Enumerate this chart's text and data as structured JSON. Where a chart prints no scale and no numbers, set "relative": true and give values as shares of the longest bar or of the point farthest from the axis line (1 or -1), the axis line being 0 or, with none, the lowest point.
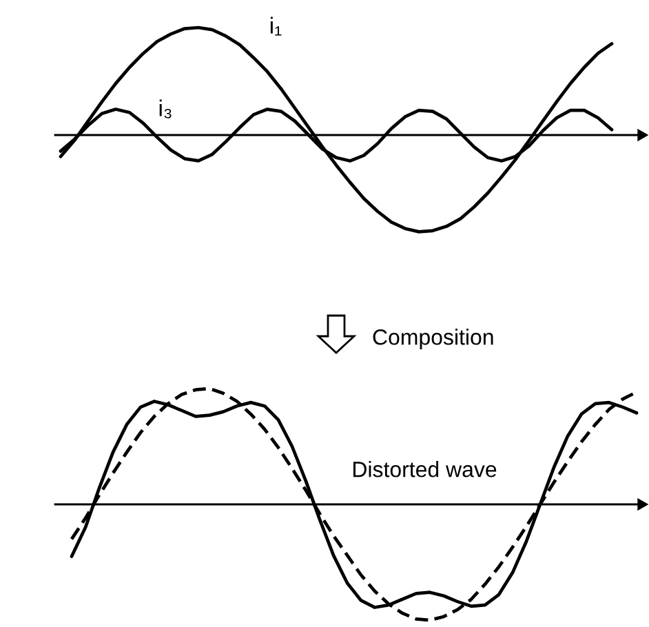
{
  "chart_data": [
    {
      "type": "line",
      "relative": true,
      "categories": [
        null,
        null,
        null,
        null,
        null,
        null,
        null,
        null,
        null,
        null,
        null,
        null,
        null,
        null,
        null,
        null,
        null,
        null,
        null,
        null,
        null,
        null,
        null,
        null,
        null,
        null,
        null,
        null,
        null,
        null,
        null,
        null,
        null,
        null,
        null,
        null,
        null,
        null,
        null,
        null,
        null
      ],
      "series": [
        {
          "name": "i₁",
          "color": "#000000",
          "line_style": "solid",
          "values": [
            -0.2,
            -0.05,
            0.13,
            0.31,
            0.48,
            0.63,
            0.76,
            0.87,
            0.94,
            0.99,
            1.0,
            0.98,
            0.92,
            0.84,
            0.72,
            0.59,
            0.43,
            0.25,
            0.07,
            -0.11,
            -0.28,
            -0.44,
            -0.59,
            -0.71,
            -0.81,
            -0.87,
            -0.9,
            -0.89,
            -0.85,
            -0.78,
            -0.67,
            -0.54,
            -0.39,
            -0.23,
            -0.05,
            0.13,
            0.31,
            0.48,
            0.63,
            0.76,
            0.85
          ]
        },
        {
          "name": "i₃",
          "color": "#000000",
          "line_style": "solid",
          "values": [
            -0.15,
            -0.04,
            0.09,
            0.2,
            0.24,
            0.21,
            0.11,
            -0.02,
            -0.14,
            -0.22,
            -0.24,
            -0.18,
            -0.06,
            0.07,
            0.19,
            0.24,
            0.22,
            0.13,
            0.0,
            -0.13,
            -0.21,
            -0.24,
            -0.19,
            -0.08,
            0.06,
            0.17,
            0.23,
            0.22,
            0.15,
            0.02,
            -0.11,
            -0.21,
            -0.24,
            -0.2,
            -0.1,
            0.04,
            0.16,
            0.23,
            0.23,
            0.16,
            0.05
          ]
        }
      ],
      "annotations": [
        "Composition"
      ]
    },
    {
      "type": "line",
      "relative": true,
      "categories": [
        null,
        null,
        null,
        null,
        null,
        null,
        null,
        null,
        null,
        null,
        null,
        null,
        null,
        null,
        null,
        null,
        null,
        null,
        null,
        null,
        null,
        null,
        null,
        null,
        null,
        null,
        null,
        null,
        null,
        null,
        null,
        null,
        null,
        null,
        null,
        null,
        null,
        null,
        null,
        null,
        null,
        null
      ],
      "series": [
        {
          "color": "#000000",
          "line_style": "dashed",
          "values": [
            -0.3,
            -0.12,
            0.08,
            0.27,
            0.45,
            0.62,
            0.76,
            0.87,
            0.95,
            0.99,
            1.0,
            0.96,
            0.89,
            0.78,
            0.65,
            0.49,
            0.31,
            0.12,
            -0.08,
            -0.27,
            -0.44,
            -0.61,
            -0.75,
            -0.86,
            -0.94,
            -0.99,
            -1.0,
            -0.97,
            -0.91,
            -0.82,
            -0.69,
            -0.54,
            -0.37,
            -0.19,
            0.0,
            0.19,
            0.37,
            0.54,
            0.69,
            0.82,
            0.91,
            0.97
          ]
        },
        {
          "color": "#000000",
          "line_style": "solid",
          "values": [
            -0.45,
            -0.2,
            0.14,
            0.45,
            0.69,
            0.84,
            0.89,
            0.86,
            0.81,
            0.76,
            0.77,
            0.8,
            0.85,
            0.88,
            0.85,
            0.73,
            0.5,
            0.2,
            -0.13,
            -0.44,
            -0.68,
            -0.83,
            -0.89,
            -0.87,
            -0.82,
            -0.77,
            -0.76,
            -0.79,
            -0.84,
            -0.88,
            -0.87,
            -0.78,
            -0.59,
            -0.32,
            0.0,
            0.32,
            0.59,
            0.78,
            0.87,
            0.88,
            0.84,
            0.79
          ]
        }
      ],
      "annotations": [
        "Distorted wave"
      ]
    }
  ]
}
